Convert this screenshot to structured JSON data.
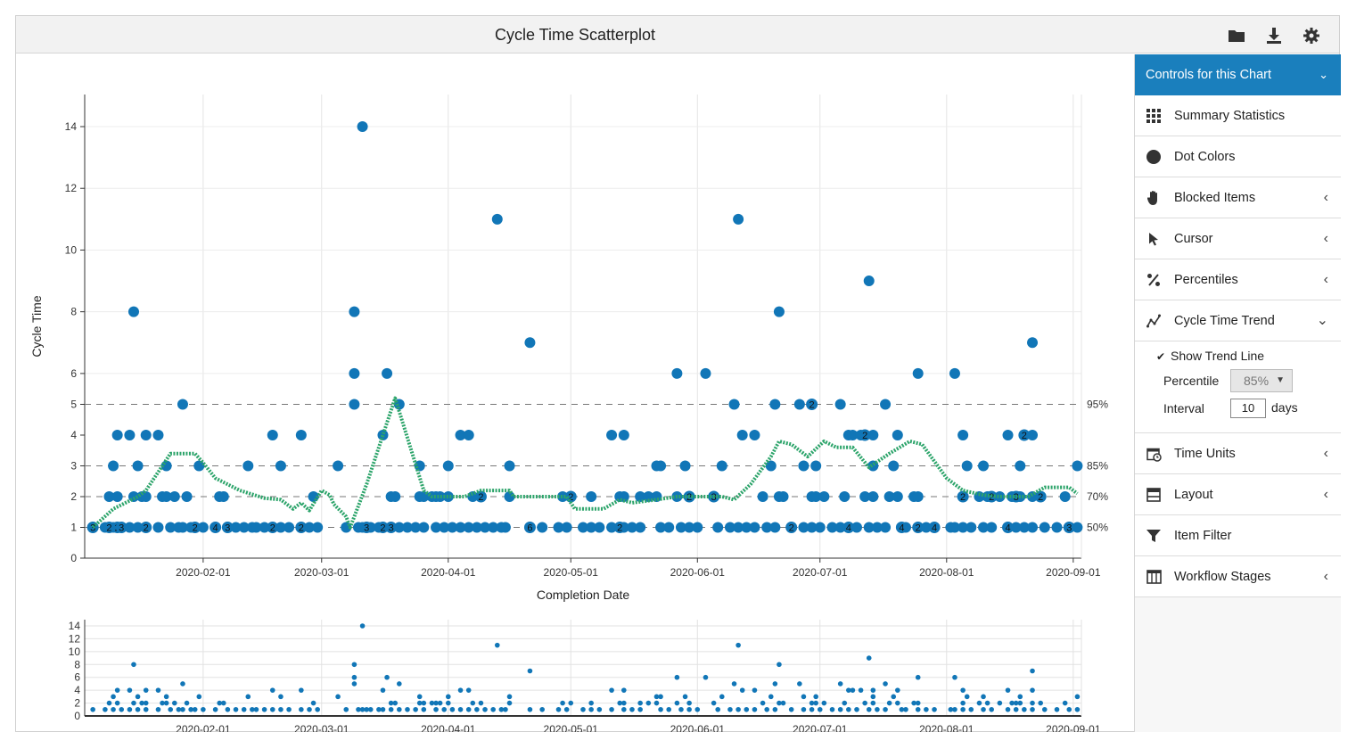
{
  "header": {
    "title": "Cycle Time Scatterplot",
    "icons": [
      "folder-icon",
      "download-icon",
      "gear-icon"
    ]
  },
  "panel": {
    "title": "Controls for this Chart",
    "items": [
      {
        "label": "Summary Statistics",
        "icon": "grid-icon",
        "chevron": ""
      },
      {
        "label": "Dot Colors",
        "icon": "circle-icon",
        "chevron": ""
      },
      {
        "label": "Blocked Items",
        "icon": "hand-icon",
        "chevron": "‹"
      },
      {
        "label": "Cursor",
        "icon": "cursor-icon",
        "chevron": "‹"
      },
      {
        "label": "Percentiles",
        "icon": "percent-icon",
        "chevron": "‹"
      },
      {
        "label": "Cycle Time Trend",
        "icon": "trend-icon",
        "chevron": "⌄"
      },
      {
        "label": "Time Units",
        "icon": "calendar-clock-icon",
        "chevron": "‹"
      },
      {
        "label": "Layout",
        "icon": "layout-icon",
        "chevron": "‹"
      },
      {
        "label": "Item Filter",
        "icon": "filter-icon",
        "chevron": ""
      },
      {
        "label": "Workflow Stages",
        "icon": "table-icon",
        "chevron": "‹"
      }
    ],
    "trend": {
      "show_label": "Show Trend Line",
      "show_checked": true,
      "percentile_label": "Percentile",
      "percentile_value": "85%",
      "interval_label": "Interval",
      "interval_value": "10",
      "interval_unit": "days"
    }
  },
  "chart_data": {
    "type": "scatter",
    "xlabel": "Completion Date",
    "ylabel": "Cycle Time",
    "x_range": [
      "2020-01-03",
      "2020-09-03"
    ],
    "x_ticks": [
      "2020-02-01",
      "2020-03-01",
      "2020-04-01",
      "2020-05-01",
      "2020-06-01",
      "2020-07-01",
      "2020-08-01",
      "2020-09-01"
    ],
    "y_ticks": [
      0,
      1,
      2,
      3,
      4,
      5,
      6,
      8,
      10,
      12,
      14
    ],
    "y_ticks_overview": [
      0,
      2,
      4,
      6,
      8,
      10,
      12,
      14
    ],
    "y_scale_note": "main axis is compressed above 5",
    "grid": true,
    "dot_color": "#1176b7",
    "trend_color": "#2ca46a",
    "percentiles": [
      {
        "label": "95%",
        "value": 5
      },
      {
        "label": "85%",
        "value": 3
      },
      {
        "label": "70%",
        "value": 2
      },
      {
        "label": "50%",
        "value": 1
      }
    ],
    "points": [
      [
        "2020-01-05",
        1
      ],
      [
        "2020-01-08",
        1
      ],
      [
        "2020-01-09",
        2
      ],
      [
        "2020-01-10",
        1
      ],
      [
        "2020-01-10",
        3
      ],
      [
        "2020-01-11",
        4
      ],
      [
        "2020-01-11",
        2
      ],
      [
        "2020-01-12",
        1
      ],
      [
        "2020-01-14",
        4
      ],
      [
        "2020-01-14",
        1
      ],
      [
        "2020-01-15",
        8
      ],
      [
        "2020-01-15",
        2
      ],
      [
        "2020-01-16",
        3
      ],
      [
        "2020-01-16",
        1
      ],
      [
        "2020-01-17",
        2
      ],
      [
        "2020-01-18",
        1
      ],
      [
        "2020-01-18",
        4
      ],
      [
        "2020-01-18",
        2
      ],
      [
        "2020-01-21",
        4
      ],
      [
        "2020-01-21",
        1
      ],
      [
        "2020-01-22",
        2
      ],
      [
        "2020-01-23",
        3
      ],
      [
        "2020-01-23",
        2
      ],
      [
        "2020-01-24",
        1
      ],
      [
        "2020-01-25",
        2
      ],
      [
        "2020-01-26",
        1
      ],
      [
        "2020-01-27",
        5
      ],
      [
        "2020-01-27",
        1
      ],
      [
        "2020-01-28",
        2
      ],
      [
        "2020-01-29",
        1
      ],
      [
        "2020-01-30",
        1
      ],
      [
        "2020-01-31",
        3
      ],
      [
        "2020-02-01",
        1
      ],
      [
        "2020-02-04",
        1
      ],
      [
        "2020-02-05",
        2
      ],
      [
        "2020-02-06",
        2
      ],
      [
        "2020-02-07",
        1
      ],
      [
        "2020-02-09",
        1
      ],
      [
        "2020-02-11",
        1
      ],
      [
        "2020-02-12",
        3
      ],
      [
        "2020-02-13",
        1
      ],
      [
        "2020-02-14",
        1
      ],
      [
        "2020-02-16",
        1
      ],
      [
        "2020-02-18",
        4
      ],
      [
        "2020-02-18",
        1
      ],
      [
        "2020-02-20",
        3
      ],
      [
        "2020-02-20",
        1
      ],
      [
        "2020-02-22",
        1
      ],
      [
        "2020-02-25",
        4
      ],
      [
        "2020-02-25",
        1
      ],
      [
        "2020-02-27",
        1
      ],
      [
        "2020-02-28",
        2
      ],
      [
        "2020-02-29",
        1
      ],
      [
        "2020-03-05",
        3
      ],
      [
        "2020-03-07",
        1
      ],
      [
        "2020-03-09",
        8
      ],
      [
        "2020-03-09",
        6
      ],
      [
        "2020-03-09",
        5
      ],
      [
        "2020-03-10",
        1
      ],
      [
        "2020-03-11",
        14
      ],
      [
        "2020-03-11",
        1
      ],
      [
        "2020-03-12",
        1
      ],
      [
        "2020-03-13",
        1
      ],
      [
        "2020-03-15",
        1
      ],
      [
        "2020-03-16",
        4
      ],
      [
        "2020-03-16",
        1
      ],
      [
        "2020-03-17",
        6
      ],
      [
        "2020-03-18",
        2
      ],
      [
        "2020-03-18",
        1
      ],
      [
        "2020-03-19",
        2
      ],
      [
        "2020-03-20",
        5
      ],
      [
        "2020-03-20",
        1
      ],
      [
        "2020-03-22",
        1
      ],
      [
        "2020-03-24",
        1
      ],
      [
        "2020-03-25",
        2
      ],
      [
        "2020-03-25",
        3
      ],
      [
        "2020-03-26",
        2
      ],
      [
        "2020-03-26",
        1
      ],
      [
        "2020-03-28",
        2
      ],
      [
        "2020-03-29",
        1
      ],
      [
        "2020-03-29",
        2
      ],
      [
        "2020-03-30",
        2
      ],
      [
        "2020-03-31",
        1
      ],
      [
        "2020-04-01",
        3
      ],
      [
        "2020-04-01",
        2
      ],
      [
        "2020-04-02",
        1
      ],
      [
        "2020-04-04",
        4
      ],
      [
        "2020-04-04",
        1
      ],
      [
        "2020-04-06",
        4
      ],
      [
        "2020-04-06",
        1
      ],
      [
        "2020-04-07",
        2
      ],
      [
        "2020-04-08",
        1
      ],
      [
        "2020-04-09",
        2
      ],
      [
        "2020-04-10",
        1
      ],
      [
        "2020-04-12",
        1
      ],
      [
        "2020-04-13",
        11
      ],
      [
        "2020-04-14",
        1
      ],
      [
        "2020-04-15",
        1
      ],
      [
        "2020-04-16",
        3
      ],
      [
        "2020-04-16",
        2
      ],
      [
        "2020-04-21",
        7
      ],
      [
        "2020-04-21",
        1
      ],
      [
        "2020-04-24",
        1
      ],
      [
        "2020-04-28",
        1
      ],
      [
        "2020-04-29",
        2
      ],
      [
        "2020-04-30",
        1
      ],
      [
        "2020-05-01",
        2
      ],
      [
        "2020-05-04",
        1
      ],
      [
        "2020-05-06",
        2
      ],
      [
        "2020-05-06",
        1
      ],
      [
        "2020-05-08",
        1
      ],
      [
        "2020-05-11",
        4
      ],
      [
        "2020-05-11",
        1
      ],
      [
        "2020-05-13",
        2
      ],
      [
        "2020-05-14",
        4
      ],
      [
        "2020-05-14",
        2
      ],
      [
        "2020-05-14",
        1
      ],
      [
        "2020-05-16",
        1
      ],
      [
        "2020-05-18",
        2
      ],
      [
        "2020-05-18",
        1
      ],
      [
        "2020-05-20",
        2
      ],
      [
        "2020-05-22",
        3
      ],
      [
        "2020-05-22",
        2
      ],
      [
        "2020-05-23",
        3
      ],
      [
        "2020-05-23",
        1
      ],
      [
        "2020-05-25",
        1
      ],
      [
        "2020-05-27",
        6
      ],
      [
        "2020-05-27",
        2
      ],
      [
        "2020-05-28",
        1
      ],
      [
        "2020-05-29",
        3
      ],
      [
        "2020-05-30",
        2
      ],
      [
        "2020-05-30",
        1
      ],
      [
        "2020-06-01",
        1
      ],
      [
        "2020-06-03",
        6
      ],
      [
        "2020-06-05",
        2
      ],
      [
        "2020-06-06",
        1
      ],
      [
        "2020-06-07",
        3
      ],
      [
        "2020-06-09",
        1
      ],
      [
        "2020-06-10",
        5
      ],
      [
        "2020-06-11",
        11
      ],
      [
        "2020-06-11",
        1
      ],
      [
        "2020-06-12",
        4
      ],
      [
        "2020-06-13",
        1
      ],
      [
        "2020-06-15",
        4
      ],
      [
        "2020-06-15",
        1
      ],
      [
        "2020-06-17",
        2
      ],
      [
        "2020-06-18",
        1
      ],
      [
        "2020-06-19",
        3
      ],
      [
        "2020-06-20",
        5
      ],
      [
        "2020-06-20",
        1
      ],
      [
        "2020-06-21",
        8
      ],
      [
        "2020-06-21",
        2
      ],
      [
        "2020-06-22",
        2
      ],
      [
        "2020-06-24",
        1
      ],
      [
        "2020-06-26",
        5
      ],
      [
        "2020-06-27",
        3
      ],
      [
        "2020-06-27",
        1
      ],
      [
        "2020-06-29",
        2
      ],
      [
        "2020-06-29",
        1
      ],
      [
        "2020-06-30",
        3
      ],
      [
        "2020-06-30",
        2
      ],
      [
        "2020-07-01",
        1
      ],
      [
        "2020-07-02",
        2
      ],
      [
        "2020-07-04",
        1
      ],
      [
        "2020-07-06",
        5
      ],
      [
        "2020-07-06",
        1
      ],
      [
        "2020-07-07",
        2
      ],
      [
        "2020-07-08",
        4
      ],
      [
        "2020-07-08",
        1
      ],
      [
        "2020-07-09",
        4
      ],
      [
        "2020-07-10",
        1
      ],
      [
        "2020-07-11",
        4
      ],
      [
        "2020-07-12",
        2
      ],
      [
        "2020-07-13",
        9
      ],
      [
        "2020-07-13",
        1
      ],
      [
        "2020-07-14",
        3
      ],
      [
        "2020-07-14",
        4
      ],
      [
        "2020-07-14",
        2
      ],
      [
        "2020-07-15",
        1
      ],
      [
        "2020-07-17",
        5
      ],
      [
        "2020-07-17",
        1
      ],
      [
        "2020-07-18",
        2
      ],
      [
        "2020-07-19",
        3
      ],
      [
        "2020-07-20",
        4
      ],
      [
        "2020-07-20",
        2
      ],
      [
        "2020-07-21",
        1
      ],
      [
        "2020-07-22",
        1
      ],
      [
        "2020-07-24",
        2
      ],
      [
        "2020-07-25",
        1
      ],
      [
        "2020-07-25",
        6
      ],
      [
        "2020-07-25",
        2
      ],
      [
        "2020-07-27",
        1
      ],
      [
        "2020-07-29",
        1
      ],
      [
        "2020-08-02",
        1
      ],
      [
        "2020-08-03",
        6
      ],
      [
        "2020-08-03",
        1
      ],
      [
        "2020-08-05",
        4
      ],
      [
        "2020-08-05",
        2
      ],
      [
        "2020-08-05",
        1
      ],
      [
        "2020-08-06",
        3
      ],
      [
        "2020-08-07",
        1
      ],
      [
        "2020-08-09",
        2
      ],
      [
        "2020-08-10",
        3
      ],
      [
        "2020-08-10",
        1
      ],
      [
        "2020-08-11",
        2
      ],
      [
        "2020-08-12",
        1
      ],
      [
        "2020-08-14",
        2
      ],
      [
        "2020-08-16",
        4
      ],
      [
        "2020-08-16",
        1
      ],
      [
        "2020-08-17",
        2
      ],
      [
        "2020-08-18",
        1
      ],
      [
        "2020-08-18",
        2
      ],
      [
        "2020-08-19",
        3
      ],
      [
        "2020-08-19",
        2
      ],
      [
        "2020-08-20",
        1
      ],
      [
        "2020-08-22",
        7
      ],
      [
        "2020-08-22",
        4
      ],
      [
        "2020-08-22",
        2
      ],
      [
        "2020-08-22",
        1
      ],
      [
        "2020-08-24",
        2
      ],
      [
        "2020-08-25",
        1
      ],
      [
        "2020-08-28",
        1
      ],
      [
        "2020-08-30",
        2
      ],
      [
        "2020-08-31",
        1
      ],
      [
        "2020-09-02",
        3
      ],
      [
        "2020-09-02",
        1
      ]
    ],
    "count_labels": [
      [
        "2020-01-05",
        1,
        "3"
      ],
      [
        "2020-01-09",
        1,
        "2"
      ],
      [
        "2020-01-11",
        1,
        "2"
      ],
      [
        "2020-01-12",
        1,
        "3"
      ],
      [
        "2020-01-18",
        1,
        "2"
      ],
      [
        "2020-01-30",
        1,
        "2"
      ],
      [
        "2020-02-04",
        1,
        "4"
      ],
      [
        "2020-02-07",
        1,
        "3"
      ],
      [
        "2020-02-18",
        1,
        "2"
      ],
      [
        "2020-02-25",
        1,
        "2"
      ],
      [
        "2020-03-12",
        1,
        "3"
      ],
      [
        "2020-03-16",
        1,
        "2"
      ],
      [
        "2020-03-18",
        1,
        "3"
      ],
      [
        "2020-04-09",
        2,
        "2"
      ],
      [
        "2020-04-21",
        1,
        "6"
      ],
      [
        "2020-05-01",
        2,
        "2"
      ],
      [
        "2020-05-13",
        1,
        "2"
      ],
      [
        "2020-05-30",
        2,
        "2"
      ],
      [
        "2020-06-05",
        2,
        "3"
      ],
      [
        "2020-06-24",
        1,
        "2"
      ],
      [
        "2020-06-29",
        5,
        "2"
      ],
      [
        "2020-07-08",
        1,
        "4"
      ],
      [
        "2020-07-12",
        4,
        "2"
      ],
      [
        "2020-07-21",
        1,
        "4"
      ],
      [
        "2020-07-25",
        1,
        "2"
      ],
      [
        "2020-07-29",
        1,
        "4"
      ],
      [
        "2020-08-05",
        2,
        "2"
      ],
      [
        "2020-08-12",
        2,
        "2"
      ],
      [
        "2020-08-16",
        1,
        "4"
      ],
      [
        "2020-08-18",
        2,
        "3"
      ],
      [
        "2020-08-20",
        4,
        "2"
      ],
      [
        "2020-08-24",
        2,
        "2"
      ],
      [
        "2020-08-31",
        1,
        "3"
      ]
    ],
    "trend": [
      [
        "2020-01-05",
        1.0
      ],
      [
        "2020-01-10",
        1.6
      ],
      [
        "2020-01-16",
        2.0
      ],
      [
        "2020-01-18",
        2.2
      ],
      [
        "2020-01-22",
        3.0
      ],
      [
        "2020-01-24",
        3.4
      ],
      [
        "2020-01-30",
        3.4
      ],
      [
        "2020-02-01",
        3.1
      ],
      [
        "2020-02-04",
        2.6
      ],
      [
        "2020-02-10",
        2.2
      ],
      [
        "2020-02-16",
        1.95
      ],
      [
        "2020-02-20",
        1.9
      ],
      [
        "2020-02-23",
        1.6
      ],
      [
        "2020-02-25",
        1.8
      ],
      [
        "2020-02-27",
        1.55
      ],
      [
        "2020-03-01",
        2.2
      ],
      [
        "2020-03-03",
        2.05
      ],
      [
        "2020-03-04",
        1.75
      ],
      [
        "2020-03-07",
        1.35
      ],
      [
        "2020-03-08",
        1.0
      ],
      [
        "2020-03-12",
        2.4
      ],
      [
        "2020-03-19",
        5.2
      ],
      [
        "2020-03-26",
        2.2
      ],
      [
        "2020-03-28",
        2.0
      ],
      [
        "2020-04-05",
        2.0
      ],
      [
        "2020-04-09",
        2.2
      ],
      [
        "2020-04-16",
        2.2
      ],
      [
        "2020-04-17",
        2.0
      ],
      [
        "2020-04-30",
        2.0
      ],
      [
        "2020-05-02",
        1.6
      ],
      [
        "2020-05-09",
        1.6
      ],
      [
        "2020-05-13",
        1.9
      ],
      [
        "2020-05-16",
        1.8
      ],
      [
        "2020-05-22",
        1.9
      ],
      [
        "2020-05-27",
        2.0
      ],
      [
        "2020-06-01",
        2.0
      ],
      [
        "2020-06-07",
        2.0
      ],
      [
        "2020-06-10",
        1.9
      ],
      [
        "2020-06-14",
        2.4
      ],
      [
        "2020-06-19",
        3.3
      ],
      [
        "2020-06-21",
        3.8
      ],
      [
        "2020-06-24",
        3.7
      ],
      [
        "2020-06-28",
        3.3
      ],
      [
        "2020-07-02",
        3.8
      ],
      [
        "2020-07-05",
        3.6
      ],
      [
        "2020-07-09",
        3.6
      ],
      [
        "2020-07-13",
        2.95
      ],
      [
        "2020-07-18",
        3.4
      ],
      [
        "2020-07-23",
        3.8
      ],
      [
        "2020-07-26",
        3.7
      ],
      [
        "2020-08-01",
        2.6
      ],
      [
        "2020-08-05",
        2.2
      ],
      [
        "2020-08-10",
        2.05
      ],
      [
        "2020-08-14",
        2.0
      ],
      [
        "2020-08-21",
        2.0
      ],
      [
        "2020-08-25",
        2.3
      ],
      [
        "2020-08-31",
        2.3
      ],
      [
        "2020-09-02",
        2.1
      ]
    ]
  }
}
